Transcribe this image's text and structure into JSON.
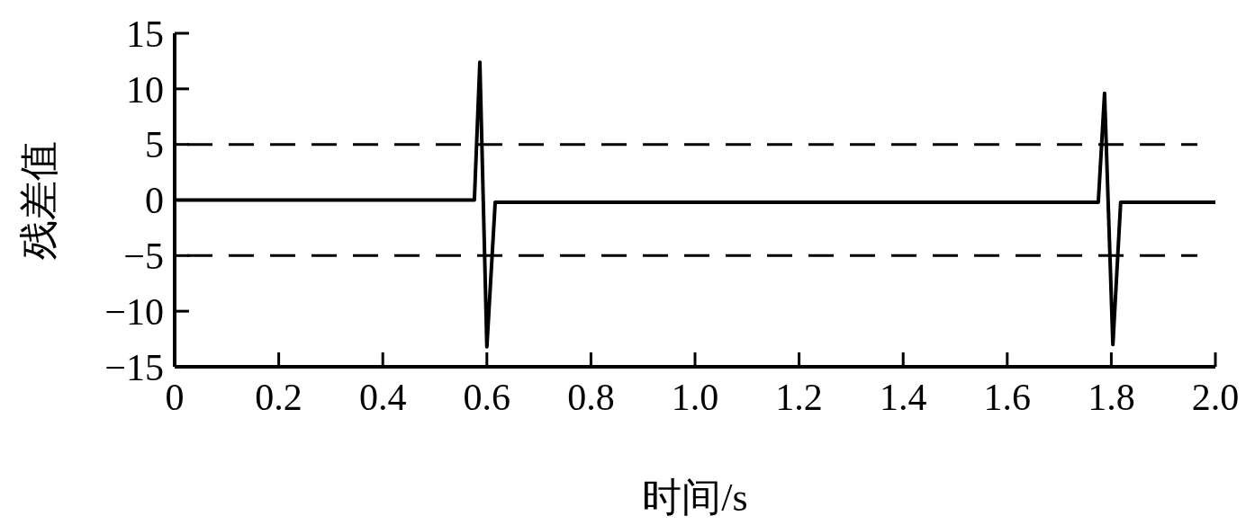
{
  "chart_data": {
    "type": "line",
    "xlabel": "时间/s",
    "ylabel": "残差值",
    "series": [
      {
        "color": "#000000",
        "x": [
          0,
          0.576,
          0.5865,
          0.6,
          0.616,
          1.775,
          1.787,
          1.803,
          1.818,
          2.0
        ],
        "values": [
          0,
          0,
          12.4,
          -13.2,
          -0.2,
          -0.2,
          9.6,
          -13,
          -0.2,
          -0.2
        ]
      }
    ],
    "xlim": [
      0,
      2.0
    ],
    "ylim": [
      -15,
      15
    ],
    "xticks": [
      0,
      0.2,
      0.4,
      0.6,
      0.8,
      {
        "value": 1,
        "label": "1.0"
      },
      1.2,
      1.4,
      1.6,
      1.8,
      {
        "value": 2,
        "label": "2.0"
      }
    ],
    "yticks": [
      {
        "value": -15,
        "label": "−15"
      },
      {
        "value": -10,
        "label": "−10"
      },
      {
        "value": -5,
        "label": "−5"
      },
      0,
      5,
      10,
      15
    ],
    "ref_lines": [
      {
        "axis": "y",
        "value": 5,
        "line_style": "dashed",
        "color": "#000000"
      },
      {
        "axis": "y",
        "value": -5,
        "line_style": "dashed",
        "color": "#000000"
      }
    ],
    "grid": false,
    "marker": "none",
    "line_style": "solid"
  }
}
